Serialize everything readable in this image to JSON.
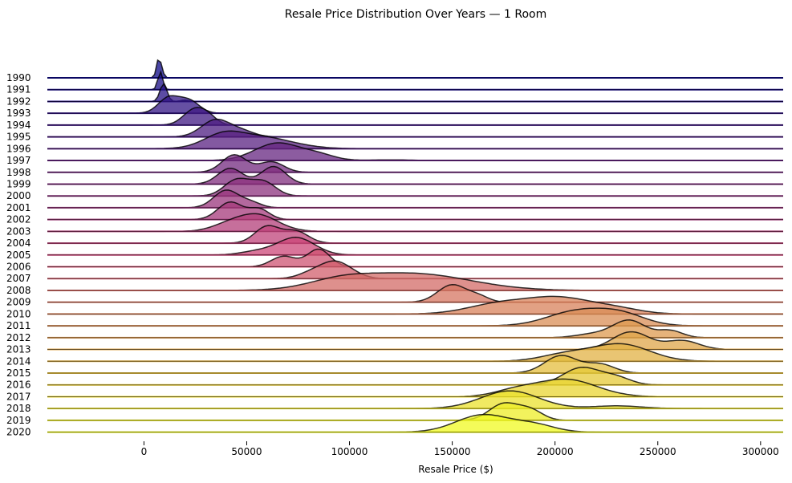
{
  "chart_data": {
    "type": "area",
    "subtype": "ridgeline",
    "title": "Resale Price Distribution Over Years — 1 Room",
    "xlabel": "Resale Price ($)",
    "ylabel": "",
    "xlim": [
      -47000,
      311000
    ],
    "xticks": [
      "0",
      "50000",
      "100000",
      "150000",
      "200000",
      "250000",
      "300000"
    ],
    "xtick_values": [
      0,
      50000,
      100000,
      150000,
      200000,
      250000,
      300000
    ],
    "colormap": "plasma",
    "colors": {
      "fill_start": "#0d0887",
      "fill_mid": "#cc4778",
      "fill_end": "#f0f921",
      "outline": "#000000",
      "background": "#ffffff"
    },
    "grid": false,
    "legend": "none",
    "rows": [
      {
        "year": "1990",
        "components": [
          [
            7000,
            1000,
            1.0
          ],
          [
            8500,
            1000,
            0.45
          ]
        ]
      },
      {
        "year": "1991",
        "components": [
          [
            8000,
            1200,
            1.0
          ]
        ]
      },
      {
        "year": "1992",
        "components": [
          [
            9500,
            1700,
            1.0
          ],
          [
            20000,
            2000,
            0.08
          ]
        ]
      },
      {
        "year": "1993",
        "components": [
          [
            12000,
            5000,
            1.0
          ],
          [
            22000,
            5000,
            0.8
          ]
        ]
      },
      {
        "year": "1994",
        "components": [
          [
            25000,
            5500,
            1.0
          ],
          [
            32000,
            4000,
            0.3
          ]
        ]
      },
      {
        "year": "1995",
        "components": [
          [
            35000,
            7000,
            1.0
          ],
          [
            48000,
            6000,
            0.3
          ]
        ]
      },
      {
        "year": "1996",
        "components": [
          [
            38000,
            9000,
            0.8
          ],
          [
            55000,
            16000,
            1.0
          ]
        ]
      },
      {
        "year": "1997",
        "components": [
          [
            65000,
            11000,
            1.0
          ],
          [
            85000,
            8000,
            0.3
          ],
          [
            120000,
            10000,
            0.04
          ]
        ]
      },
      {
        "year": "1998",
        "components": [
          [
            44000,
            6000,
            1.0
          ],
          [
            62000,
            6000,
            0.6
          ]
        ]
      },
      {
        "year": "1999",
        "components": [
          [
            42000,
            6000,
            0.9
          ],
          [
            63000,
            6000,
            1.0
          ]
        ]
      },
      {
        "year": "2000",
        "components": [
          [
            45000,
            6000,
            1.0
          ],
          [
            58000,
            6000,
            0.9
          ]
        ]
      },
      {
        "year": "2001",
        "components": [
          [
            40000,
            6000,
            1.0
          ],
          [
            52000,
            5000,
            0.3
          ]
        ]
      },
      {
        "year": "2002",
        "components": [
          [
            42000,
            6000,
            1.0
          ],
          [
            56000,
            5000,
            0.6
          ]
        ]
      },
      {
        "year": "2003",
        "components": [
          [
            55000,
            10000,
            1.0
          ],
          [
            40000,
            8000,
            0.3
          ]
        ]
      },
      {
        "year": "2004",
        "components": [
          [
            60000,
            6000,
            1.0
          ],
          [
            74000,
            6000,
            0.7
          ]
        ]
      },
      {
        "year": "2005",
        "components": [
          [
            74000,
            9000,
            1.0
          ],
          [
            55000,
            8000,
            0.2
          ]
        ]
      },
      {
        "year": "2006",
        "components": [
          [
            68000,
            6000,
            0.6
          ],
          [
            85000,
            5500,
            1.0
          ]
        ]
      },
      {
        "year": "2007",
        "components": [
          [
            93000,
            8000,
            1.0
          ],
          [
            80000,
            6000,
            0.2
          ]
        ]
      },
      {
        "year": "2008",
        "components": [
          [
            130000,
            28000,
            1.0
          ],
          [
            95000,
            15000,
            0.4
          ]
        ]
      },
      {
        "year": "2009",
        "components": [
          [
            150000,
            7000,
            1.0
          ],
          [
            163000,
            5000,
            0.3
          ]
        ]
      },
      {
        "year": "2010",
        "components": [
          [
            172000,
            15000,
            0.6
          ],
          [
            202000,
            16000,
            1.0
          ],
          [
            230000,
            12000,
            0.3
          ]
        ]
      },
      {
        "year": "2011",
        "components": [
          [
            210000,
            14000,
            1.0
          ],
          [
            232000,
            12000,
            0.8
          ]
        ]
      },
      {
        "year": "2012",
        "components": [
          [
            236000,
            8000,
            1.0
          ],
          [
            256000,
            6000,
            0.4
          ],
          [
            218000,
            8000,
            0.2
          ]
        ]
      },
      {
        "year": "2013",
        "components": [
          [
            237000,
            9000,
            1.0
          ],
          [
            262000,
            8000,
            0.5
          ]
        ]
      },
      {
        "year": "2014",
        "components": [
          [
            232000,
            14000,
            1.0
          ],
          [
            205000,
            12000,
            0.4
          ]
        ]
      },
      {
        "year": "2015",
        "components": [
          [
            203000,
            8000,
            1.0
          ],
          [
            222000,
            7000,
            0.5
          ]
        ]
      },
      {
        "year": "2016",
        "components": [
          [
            213000,
            9000,
            1.0
          ],
          [
            230000,
            7000,
            0.4
          ]
        ]
      },
      {
        "year": "2017",
        "components": [
          [
            205000,
            15000,
            1.0
          ],
          [
            180000,
            10000,
            0.3
          ]
        ]
      },
      {
        "year": "2018",
        "components": [
          [
            178000,
            14000,
            1.0
          ],
          [
            230000,
            12000,
            0.15
          ]
        ]
      },
      {
        "year": "2019",
        "components": [
          [
            175000,
            7000,
            1.0
          ],
          [
            188000,
            6000,
            0.6
          ]
        ]
      },
      {
        "year": "2020",
        "components": [
          [
            165000,
            13000,
            1.0
          ],
          [
            190000,
            10000,
            0.4
          ]
        ]
      }
    ]
  }
}
